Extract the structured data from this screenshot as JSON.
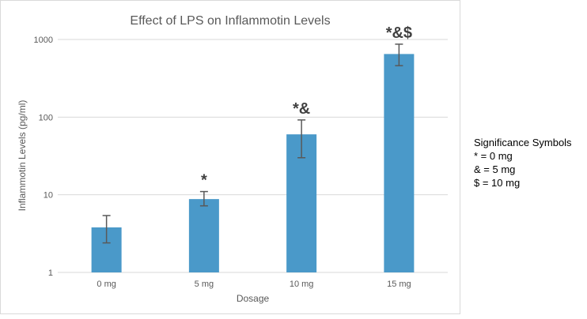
{
  "chart_data": {
    "type": "bar",
    "title": "Effect of LPS on Inflammotin Levels",
    "xlabel": "Dosage",
    "ylabel": "Inflammotin Levels (pg/ml)",
    "categories": [
      "0 mg",
      "5 mg",
      "10 mg",
      "15 mg"
    ],
    "values": [
      3.8,
      8.8,
      60,
      650
    ],
    "error_high": [
      5.4,
      11,
      92,
      870
    ],
    "error_low": [
      2.4,
      7.2,
      30,
      460
    ],
    "significance_labels": [
      "",
      "*",
      "*&",
      "*&$"
    ],
    "yscale": "log",
    "ylim": [
      1,
      1000
    ],
    "yticks": [
      1,
      10,
      100,
      1000
    ],
    "grid": "horizontal",
    "legend_position": "none",
    "colors": {
      "bar": "#4a99c9",
      "grid": "#d9d9d9",
      "axis_text": "#595959",
      "title_text": "#595959",
      "error_bar": "#595959",
      "sig_text": "#404040",
      "frame_border": "#d9d9d9"
    }
  },
  "sig_note": {
    "title": "Significance Symbols",
    "lines": [
      "* = 0 mg",
      "& = 5 mg",
      "$ = 10 mg"
    ]
  }
}
